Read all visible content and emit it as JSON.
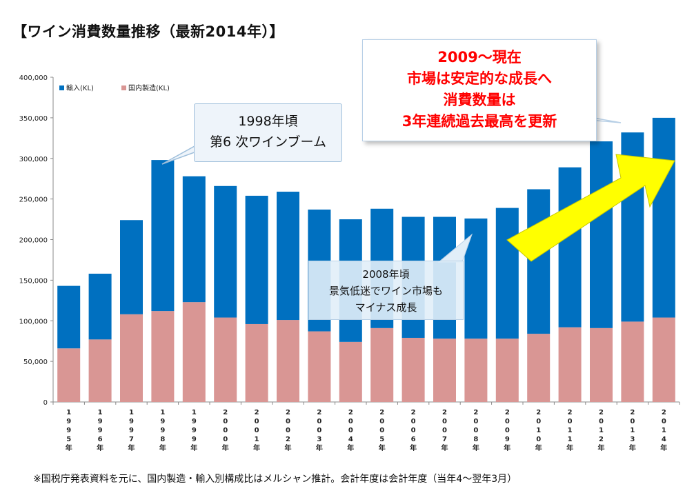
{
  "title": "【ワイン消費数量推移（最新2014年）】",
  "footnote": "※国税庁発表資料を元に、国内製造・輸入別構成比はメルシャン推計。会計年度は会計年度（当年4～翌年3月）",
  "colors": {
    "import": "#0070c0",
    "domestic": "#d99694",
    "arrow": "#ffff00",
    "callout_red": "#ff0000"
  },
  "callouts": {
    "c1998": [
      "1998年頃",
      "第6 次ワインブーム"
    ],
    "c2009": [
      "2009～現在",
      "市場は安定的な成長へ",
      "消費数量は",
      "3年連続過去最高を更新"
    ],
    "c2008": [
      "2008年頃",
      "景気低迷でワイン市場も",
      "マイナス成長"
    ]
  },
  "chart_data": {
    "type": "bar",
    "stacked": true,
    "categories": [
      "1995年",
      "1996年",
      "1997年",
      "1998年",
      "1999年",
      "2000年",
      "2001年",
      "2002年",
      "2003年",
      "2004年",
      "2005年",
      "2006年",
      "2007年",
      "2008年",
      "2009年",
      "2010年",
      "2011年",
      "2012年",
      "2013年",
      "2014年"
    ],
    "category_glyphs": [
      [
        "1",
        "9",
        "9",
        "5",
        "年"
      ],
      [
        "1",
        "9",
        "9",
        "6",
        "年"
      ],
      [
        "1",
        "9",
        "9",
        "7",
        "年"
      ],
      [
        "1",
        "9",
        "9",
        "8",
        "年"
      ],
      [
        "1",
        "9",
        "9",
        "9",
        "年"
      ],
      [
        "2",
        "0",
        "0",
        "0",
        "年"
      ],
      [
        "2",
        "0",
        "0",
        "1",
        "年"
      ],
      [
        "2",
        "0",
        "0",
        "2",
        "年"
      ],
      [
        "2",
        "0",
        "0",
        "3",
        "年"
      ],
      [
        "2",
        "0",
        "0",
        "4",
        "年"
      ],
      [
        "2",
        "0",
        "0",
        "5",
        "年"
      ],
      [
        "2",
        "0",
        "0",
        "6",
        "年"
      ],
      [
        "2",
        "0",
        "0",
        "7",
        "年"
      ],
      [
        "2",
        "0",
        "0",
        "8",
        "年"
      ],
      [
        "2",
        "0",
        "0",
        "9",
        "年"
      ],
      [
        "2",
        "0",
        "1",
        "0",
        "年"
      ],
      [
        "2",
        "0",
        "1",
        "1",
        "年"
      ],
      [
        "2",
        "0",
        "1",
        "2",
        "年"
      ],
      [
        "2",
        "0",
        "1",
        "3",
        "年"
      ],
      [
        "2",
        "0",
        "1",
        "4",
        "年"
      ]
    ],
    "series": [
      {
        "name": "国内製造(KL)",
        "color": "#d99694",
        "values": [
          66000,
          77000,
          108000,
          112000,
          123000,
          104000,
          96000,
          101000,
          87000,
          74000,
          91000,
          79000,
          78000,
          78000,
          78000,
          84000,
          92000,
          91000,
          99000,
          104000
        ]
      },
      {
        "name": "輸入(KL)",
        "color": "#0070c0",
        "values": [
          77000,
          81000,
          116000,
          186000,
          155000,
          162000,
          158000,
          158000,
          150000,
          151000,
          147000,
          149000,
          150000,
          148000,
          161000,
          178000,
          197000,
          230000,
          233000,
          246000
        ]
      }
    ],
    "ylim": [
      0,
      400000
    ],
    "yticks": [
      0,
      50000,
      100000,
      150000,
      200000,
      250000,
      300000,
      350000,
      400000
    ],
    "ytick_labels": [
      "0",
      "50,000",
      "100,000",
      "150,000",
      "200,000",
      "250,000",
      "300,000",
      "350,000",
      "400,000"
    ],
    "legend": {
      "position": "top-left",
      "entries": [
        "輸入(KL)",
        "国内製造(KL)"
      ]
    },
    "grid": false
  }
}
